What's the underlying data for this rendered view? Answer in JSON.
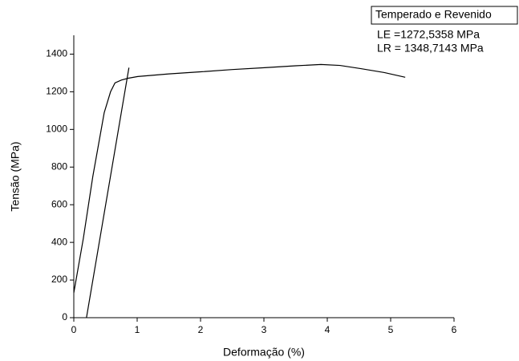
{
  "chart_data": {
    "type": "line",
    "x_label": "Deformação (%)",
    "y_label": "Tensão (MPa)",
    "annotations": [
      "Temperado e Revenido",
      "LE =1272,5358 MPa",
      "LR = 1348,7143 MPa"
    ],
    "xlim": [
      0,
      6
    ],
    "xticks": [
      0,
      1,
      2,
      3,
      4,
      5,
      6
    ],
    "ylim": [
      0,
      1500
    ],
    "yticks": [
      0,
      200,
      400,
      600,
      800,
      1000,
      1200,
      1400
    ],
    "grid": false,
    "series": [
      {
        "color": "#000000",
        "x": [
          0,
          0.15,
          0.3,
          0.48,
          0.58,
          0.65,
          0.75,
          0.86,
          1.01,
          1.5,
          2.0,
          2.5,
          3.01,
          3.5,
          3.9,
          4.2,
          4.53,
          4.9,
          5.23
        ],
        "values": [
          132,
          420,
          750,
          1089,
          1200,
          1247,
          1262,
          1272,
          1281,
          1295,
          1306,
          1318,
          1328,
          1338,
          1345,
          1340,
          1323,
          1302,
          1277
        ]
      },
      {
        "color": "#000000",
        "x": [
          0.2,
          0.87
        ],
        "values": [
          0,
          1328
        ]
      }
    ]
  }
}
